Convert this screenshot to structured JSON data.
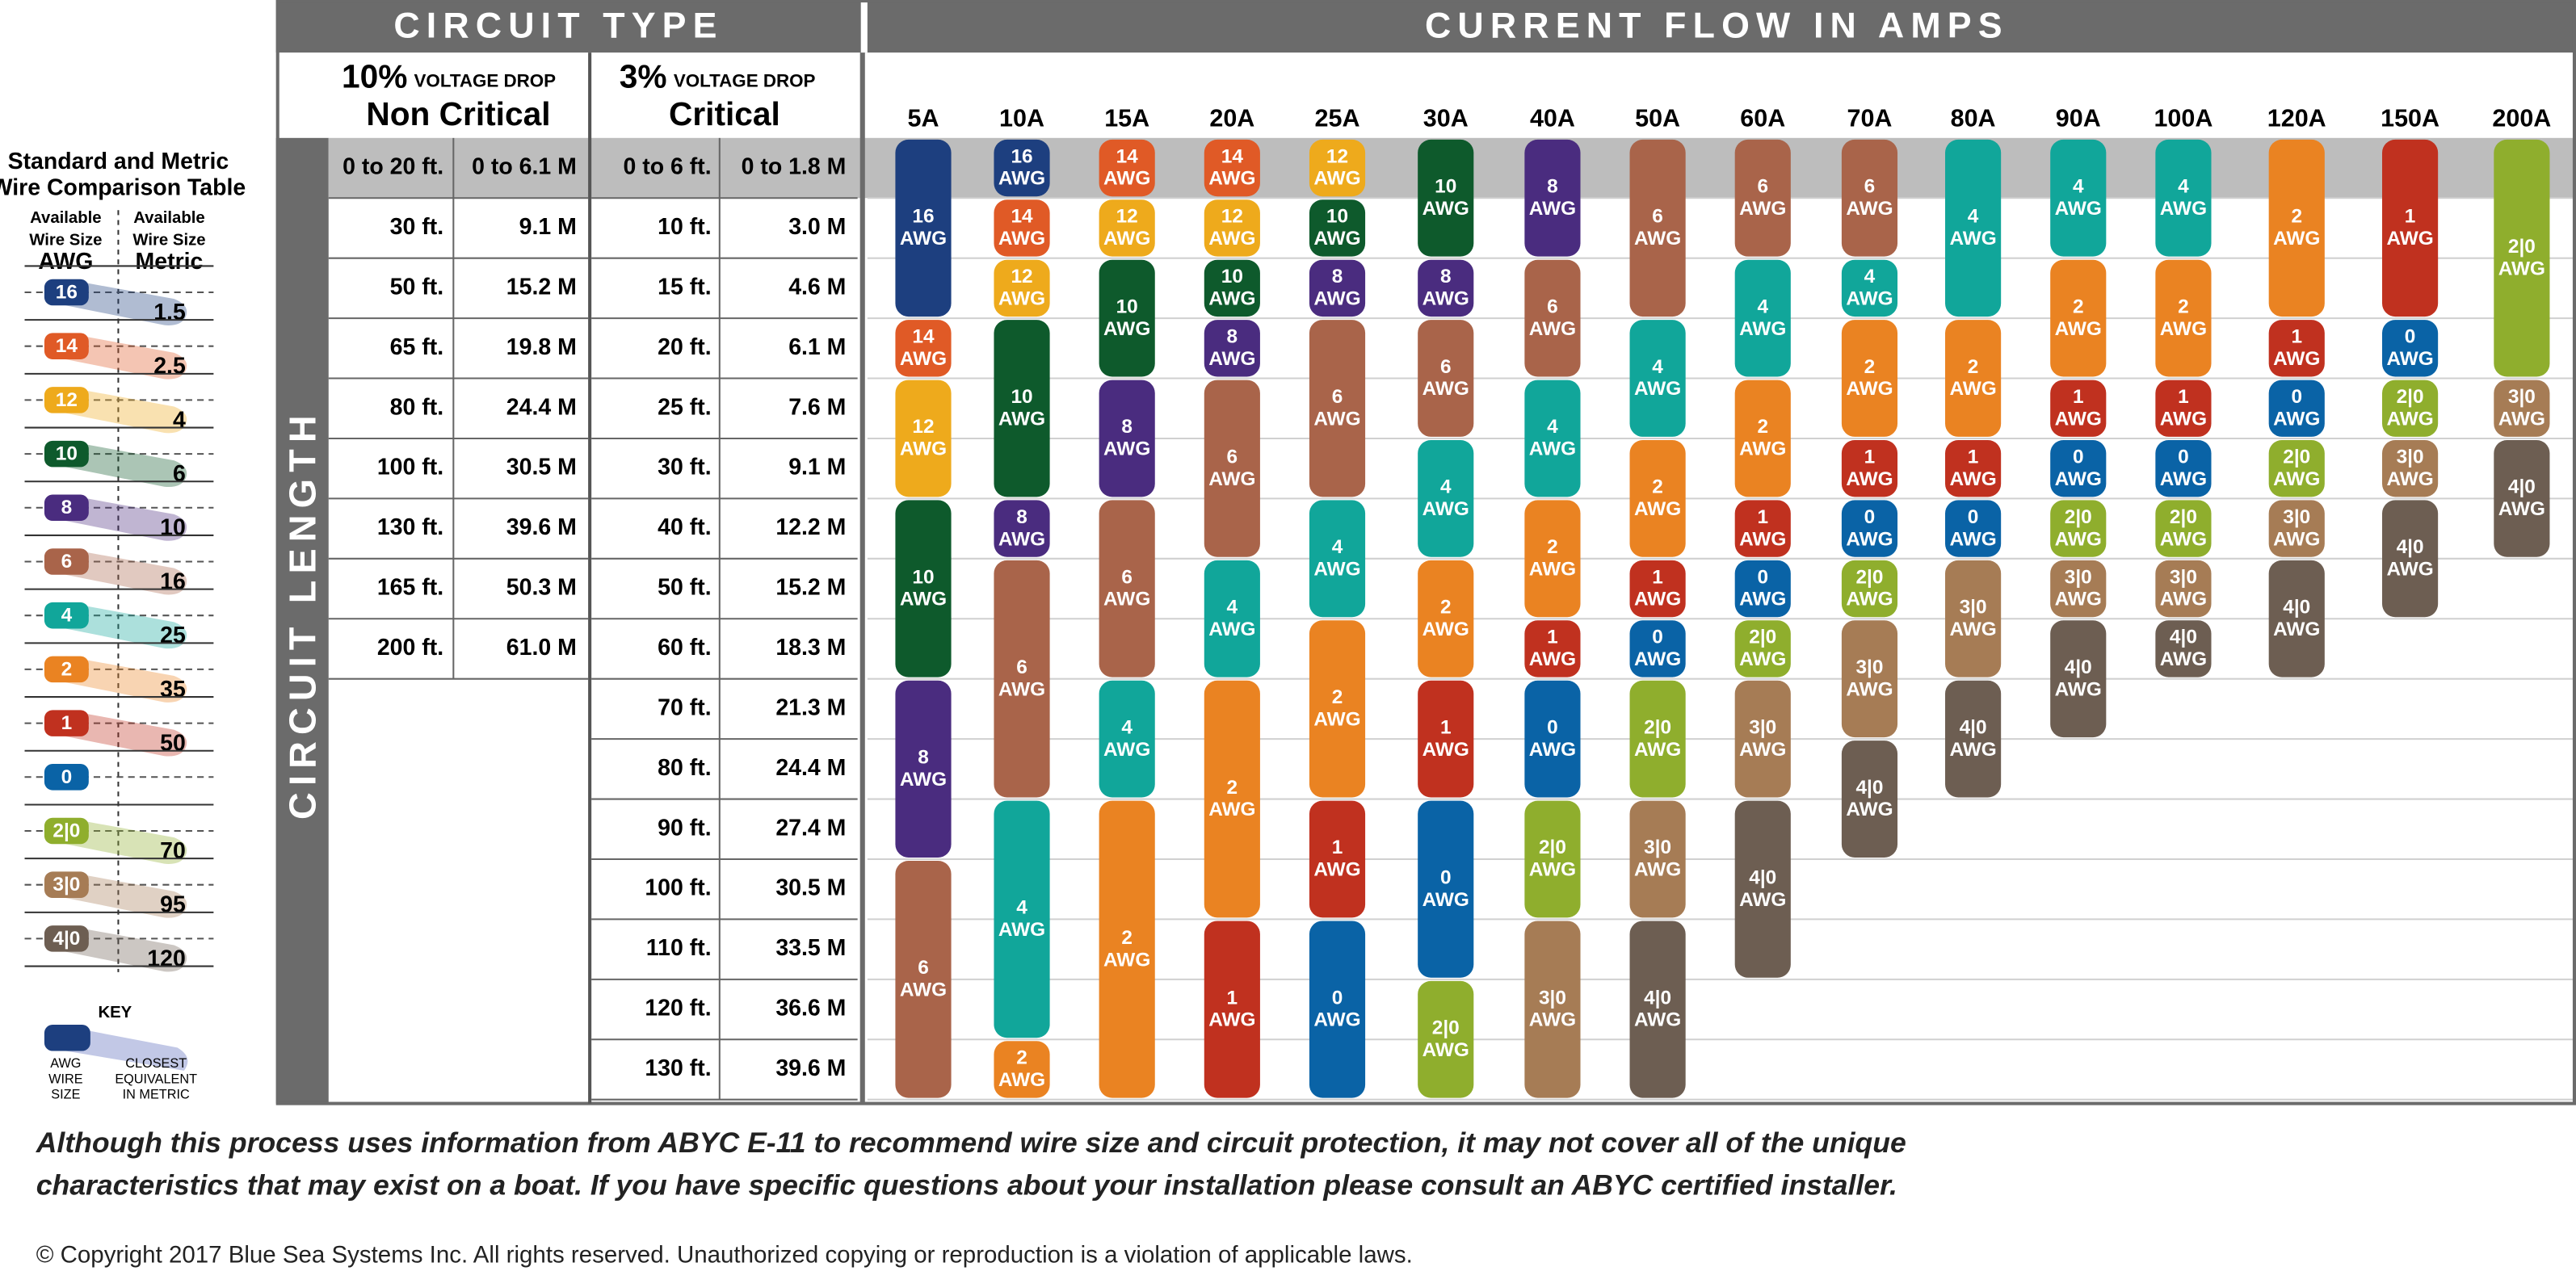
{
  "legend": {
    "title": [
      "Standard and Metric",
      "Wire Comparison Table"
    ],
    "headers": [
      [
        "Available",
        "Wire Size",
        "AWG"
      ],
      [
        "Available",
        "Wire Size",
        "Metric"
      ]
    ],
    "entries": [
      {
        "gauge": "16",
        "metric": 1.5,
        "color": "#1d3f7f"
      },
      {
        "gauge": "14",
        "metric": 2.5,
        "color": "#e05a26"
      },
      {
        "gauge": "12",
        "metric": 4,
        "color": "#eeaa1c"
      },
      {
        "gauge": "10",
        "metric": 6,
        "color": "#0e5a2c"
      },
      {
        "gauge": "8",
        "metric": 10,
        "color": "#4a2c7f"
      },
      {
        "gauge": "6",
        "metric": 16,
        "color": "#a9644a"
      },
      {
        "gauge": "4",
        "metric": 25,
        "color": "#11a69a"
      },
      {
        "gauge": "2",
        "metric": 35,
        "color": "#ea8322"
      },
      {
        "gauge": "1",
        "metric": 50,
        "color": "#c0311f"
      },
      {
        "gauge": "0",
        "metric": null,
        "color": "#0a63a6"
      },
      {
        "gauge": "2|0",
        "metric": 70,
        "color": "#8fae2d"
      },
      {
        "gauge": "3|0",
        "metric": 95,
        "color": "#a67c55"
      },
      {
        "gauge": "4|0",
        "metric": 120,
        "color": "#6d5e52"
      }
    ],
    "key": {
      "title": "KEY",
      "awg": [
        "AWG",
        "WIRE",
        "SIZE"
      ],
      "metric": [
        "CLOSEST",
        "EQUIVALENT",
        "IN METRIC"
      ]
    }
  },
  "header": {
    "circuit_type": "CIRCUIT TYPE",
    "current_flow": "CURRENT FLOW IN AMPS",
    "circuit_length": "CIRCUIT LENGTH",
    "types": [
      {
        "drop": "10%",
        "drop_label": "VOLTAGE DROP",
        "name": "Non Critical"
      },
      {
        "drop": "3%",
        "drop_label": "VOLTAGE DROP",
        "name": "Critical"
      }
    ]
  },
  "table": {
    "non_critical": [
      [
        "0 to 20 ft.",
        "0 to 6.1 M"
      ],
      [
        "30 ft.",
        "9.1 M"
      ],
      [
        "50 ft.",
        "15.2 M"
      ],
      [
        "65 ft.",
        "19.8 M"
      ],
      [
        "80 ft.",
        "24.4 M"
      ],
      [
        "100 ft.",
        "30.5 M"
      ],
      [
        "130 ft.",
        "39.6 M"
      ],
      [
        "165 ft.",
        "50.3 M"
      ],
      [
        "200 ft.",
        "61.0 M"
      ]
    ],
    "critical": [
      [
        "0 to 6 ft.",
        "0 to 1.8 M"
      ],
      [
        "10 ft.",
        "3.0 M"
      ],
      [
        "15 ft.",
        "4.6 M"
      ],
      [
        "20 ft.",
        "6.1 M"
      ],
      [
        "25 ft.",
        "7.6 M"
      ],
      [
        "30 ft.",
        "9.1 M"
      ],
      [
        "40 ft.",
        "12.2 M"
      ],
      [
        "50 ft.",
        "15.2 M"
      ],
      [
        "60 ft.",
        "18.3 M"
      ],
      [
        "70 ft.",
        "21.3 M"
      ],
      [
        "80 ft.",
        "24.4 M"
      ],
      [
        "90 ft.",
        "27.4 M"
      ],
      [
        "100 ft.",
        "30.5 M"
      ],
      [
        "110 ft.",
        "33.5 M"
      ],
      [
        "120 ft.",
        "36.6 M"
      ],
      [
        "130 ft.",
        "39.6 M"
      ]
    ]
  },
  "columns": [
    {
      "amps": "5A",
      "segments": [
        {
          "gauge": "16",
          "unit": "AWG",
          "rows": 3
        },
        {
          "gauge": "14",
          "unit": "AWG",
          "rows": 1
        },
        {
          "gauge": "12",
          "unit": "AWG",
          "rows": 2
        },
        {
          "gauge": "10",
          "unit": "AWG",
          "rows": 3
        },
        {
          "gauge": "8",
          "unit": "AWG",
          "rows": 3
        },
        {
          "gauge": "6",
          "unit": "AWG",
          "rows": 4
        }
      ]
    },
    {
      "amps": "10A",
      "segments": [
        {
          "gauge": "16",
          "unit": "AWG",
          "rows": 1
        },
        {
          "gauge": "14",
          "unit": "AWG",
          "rows": 1
        },
        {
          "gauge": "12",
          "unit": "AWG",
          "rows": 1
        },
        {
          "gauge": "10",
          "unit": "AWG",
          "rows": 3
        },
        {
          "gauge": "8",
          "unit": "AWG",
          "rows": 1
        },
        {
          "gauge": "6",
          "unit": "AWG",
          "rows": 4
        },
        {
          "gauge": "4",
          "unit": "AWG",
          "rows": 4
        },
        {
          "gauge": "2",
          "unit": "AWG",
          "rows": 1
        }
      ]
    },
    {
      "amps": "15A",
      "segments": [
        {
          "gauge": "14",
          "unit": "AWG",
          "rows": 1
        },
        {
          "gauge": "12",
          "unit": "AWG",
          "rows": 1
        },
        {
          "gauge": "10",
          "unit": "AWG",
          "rows": 2
        },
        {
          "gauge": "8",
          "unit": "AWG",
          "rows": 2
        },
        {
          "gauge": "6",
          "unit": "AWG",
          "rows": 3
        },
        {
          "gauge": "4",
          "unit": "AWG",
          "rows": 2
        },
        {
          "gauge": "2",
          "unit": "AWG",
          "rows": 5
        }
      ]
    },
    {
      "amps": "20A",
      "segments": [
        {
          "gauge": "14",
          "unit": "AWG",
          "rows": 1
        },
        {
          "gauge": "12",
          "unit": "AWG",
          "rows": 1
        },
        {
          "gauge": "10",
          "unit": "AWG",
          "rows": 1
        },
        {
          "gauge": "8",
          "unit": "AWG",
          "rows": 1
        },
        {
          "gauge": "6",
          "unit": "AWG",
          "rows": 3
        },
        {
          "gauge": "4",
          "unit": "AWG",
          "rows": 2
        },
        {
          "gauge": "2",
          "unit": "AWG",
          "rows": 4
        },
        {
          "gauge": "1",
          "unit": "AWG",
          "rows": 3
        }
      ]
    },
    {
      "amps": "25A",
      "segments": [
        {
          "gauge": "12",
          "unit": "AWG",
          "rows": 1
        },
        {
          "gauge": "10",
          "unit": "AWG",
          "rows": 1
        },
        {
          "gauge": "8",
          "unit": "AWG",
          "rows": 1
        },
        {
          "gauge": "6",
          "unit": "AWG",
          "rows": 3
        },
        {
          "gauge": "4",
          "unit": "AWG",
          "rows": 2
        },
        {
          "gauge": "2",
          "unit": "AWG",
          "rows": 3
        },
        {
          "gauge": "1",
          "unit": "AWG",
          "rows": 2
        },
        {
          "gauge": "0",
          "unit": "AWG",
          "rows": 3
        }
      ]
    },
    {
      "amps": "30A",
      "segments": [
        {
          "gauge": "10",
          "unit": "AWG",
          "rows": 2
        },
        {
          "gauge": "8",
          "unit": "AWG",
          "rows": 1
        },
        {
          "gauge": "6",
          "unit": "AWG",
          "rows": 2
        },
        {
          "gauge": "4",
          "unit": "AWG",
          "rows": 2
        },
        {
          "gauge": "2",
          "unit": "AWG",
          "rows": 2
        },
        {
          "gauge": "1",
          "unit": "AWG",
          "rows": 2
        },
        {
          "gauge": "0",
          "unit": "AWG",
          "rows": 3
        },
        {
          "gauge": "2|0",
          "unit": "AWG",
          "rows": 2
        }
      ]
    },
    {
      "amps": "40A",
      "segments": [
        {
          "gauge": "8",
          "unit": "AWG",
          "rows": 2
        },
        {
          "gauge": "6",
          "unit": "AWG",
          "rows": 2
        },
        {
          "gauge": "4",
          "unit": "AWG",
          "rows": 2
        },
        {
          "gauge": "2",
          "unit": "AWG",
          "rows": 2
        },
        {
          "gauge": "1",
          "unit": "AWG",
          "rows": 1
        },
        {
          "gauge": "0",
          "unit": "AWG",
          "rows": 2
        },
        {
          "gauge": "2|0",
          "unit": "AWG",
          "rows": 2
        },
        {
          "gauge": "3|0",
          "unit": "AWG",
          "rows": 3
        }
      ]
    },
    {
      "amps": "50A",
      "segments": [
        {
          "gauge": "6",
          "unit": "AWG",
          "rows": 3
        },
        {
          "gauge": "4",
          "unit": "AWG",
          "rows": 2
        },
        {
          "gauge": "2",
          "unit": "AWG",
          "rows": 2
        },
        {
          "gauge": "1",
          "unit": "AWG",
          "rows": 1
        },
        {
          "gauge": "0",
          "unit": "AWG",
          "rows": 1
        },
        {
          "gauge": "2|0",
          "unit": "AWG",
          "rows": 2
        },
        {
          "gauge": "3|0",
          "unit": "AWG",
          "rows": 2
        },
        {
          "gauge": "4|0",
          "unit": "AWG",
          "rows": 3
        }
      ]
    },
    {
      "amps": "60A",
      "segments": [
        {
          "gauge": "6",
          "unit": "AWG",
          "rows": 2
        },
        {
          "gauge": "4",
          "unit": "AWG",
          "rows": 2
        },
        {
          "gauge": "2",
          "unit": "AWG",
          "rows": 2
        },
        {
          "gauge": "1",
          "unit": "AWG",
          "rows": 1
        },
        {
          "gauge": "0",
          "unit": "AWG",
          "rows": 1
        },
        {
          "gauge": "2|0",
          "unit": "AWG",
          "rows": 1
        },
        {
          "gauge": "3|0",
          "unit": "AWG",
          "rows": 2
        },
        {
          "gauge": "4|0",
          "unit": "AWG",
          "rows": 3
        }
      ]
    },
    {
      "amps": "70A",
      "segments": [
        {
          "gauge": "6",
          "unit": "AWG",
          "rows": 2
        },
        {
          "gauge": "4",
          "unit": "AWG",
          "rows": 1
        },
        {
          "gauge": "2",
          "unit": "AWG",
          "rows": 2
        },
        {
          "gauge": "1",
          "unit": "AWG",
          "rows": 1
        },
        {
          "gauge": "0",
          "unit": "AWG",
          "rows": 1
        },
        {
          "gauge": "2|0",
          "unit": "AWG",
          "rows": 1
        },
        {
          "gauge": "3|0",
          "unit": "AWG",
          "rows": 2
        },
        {
          "gauge": "4|0",
          "unit": "AWG",
          "rows": 2
        }
      ]
    },
    {
      "amps": "80A",
      "segments": [
        {
          "gauge": "4",
          "unit": "AWG",
          "rows": 3
        },
        {
          "gauge": "2",
          "unit": "AWG",
          "rows": 2
        },
        {
          "gauge": "1",
          "unit": "AWG",
          "rows": 1
        },
        {
          "gauge": "0",
          "unit": "AWG",
          "rows": 1
        },
        {
          "gauge": "3|0",
          "unit": "AWG",
          "rows": 2
        },
        {
          "gauge": "4|0",
          "unit": "AWG",
          "rows": 2
        }
      ]
    },
    {
      "amps": "90A",
      "segments": [
        {
          "gauge": "4",
          "unit": "AWG",
          "rows": 2
        },
        {
          "gauge": "2",
          "unit": "AWG",
          "rows": 2
        },
        {
          "gauge": "1",
          "unit": "AWG",
          "rows": 1
        },
        {
          "gauge": "0",
          "unit": "AWG",
          "rows": 1
        },
        {
          "gauge": "2|0",
          "unit": "AWG",
          "rows": 1
        },
        {
          "gauge": "3|0",
          "unit": "AWG",
          "rows": 1
        },
        {
          "gauge": "4|0",
          "unit": "AWG",
          "rows": 2
        }
      ]
    },
    {
      "amps": "100A",
      "segments": [
        {
          "gauge": "4",
          "unit": "AWG",
          "rows": 2
        },
        {
          "gauge": "2",
          "unit": "AWG",
          "rows": 2
        },
        {
          "gauge": "1",
          "unit": "AWG",
          "rows": 1
        },
        {
          "gauge": "0",
          "unit": "AWG",
          "rows": 1
        },
        {
          "gauge": "2|0",
          "unit": "AWG",
          "rows": 1
        },
        {
          "gauge": "3|0",
          "unit": "AWG",
          "rows": 1
        },
        {
          "gauge": "4|0",
          "unit": "AWG",
          "rows": 1
        }
      ]
    },
    {
      "amps": "120A",
      "segments": [
        {
          "gauge": "2",
          "unit": "AWG",
          "rows": 3
        },
        {
          "gauge": "1",
          "unit": "AWG",
          "rows": 1
        },
        {
          "gauge": "0",
          "unit": "AWG",
          "rows": 1
        },
        {
          "gauge": "2|0",
          "unit": "AWG",
          "rows": 1
        },
        {
          "gauge": "3|0",
          "unit": "AWG",
          "rows": 1
        },
        {
          "gauge": "4|0",
          "unit": "AWG",
          "rows": 2
        }
      ]
    },
    {
      "amps": "150A",
      "segments": [
        {
          "gauge": "1",
          "unit": "AWG",
          "rows": 3
        },
        {
          "gauge": "0",
          "unit": "AWG",
          "rows": 1
        },
        {
          "gauge": "2|0",
          "unit": "AWG",
          "rows": 1
        },
        {
          "gauge": "3|0",
          "unit": "AWG",
          "rows": 1
        },
        {
          "gauge": "4|0",
          "unit": "AWG",
          "rows": 2
        }
      ]
    },
    {
      "amps": "200A",
      "segments": [
        {
          "gauge": "2|0",
          "unit": "AWG",
          "rows": 4
        },
        {
          "gauge": "3|0",
          "unit": "AWG",
          "rows": 1
        },
        {
          "gauge": "4|0",
          "unit": "AWG",
          "rows": 2
        }
      ]
    }
  ],
  "footer": {
    "disclaimer": [
      "Although this process uses information from ABYC E-11 to recommend wire size and circuit protection, it may not cover all of the unique",
      "characteristics that may exist on a boat. If you have specific questions about your installation please consult an ABYC certified installer."
    ],
    "copyright": "© Copyright 2017 Blue Sea Systems Inc. All rights reserved. Unauthorized copying or reproduction is a violation of applicable laws."
  }
}
